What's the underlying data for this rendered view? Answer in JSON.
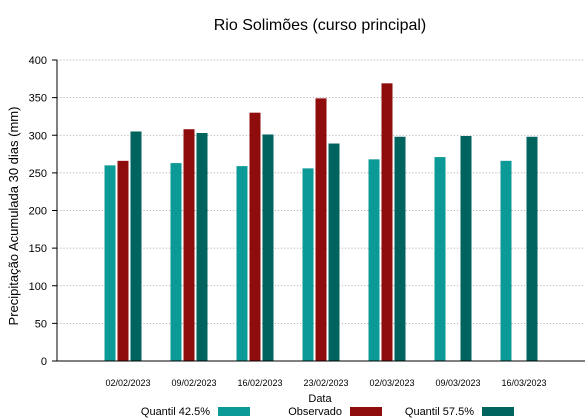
{
  "chart_data": {
    "type": "bar",
    "title": "Rio Solimões (curso principal)",
    "xlabel": "Data",
    "ylabel": "Precipitação Acumulada 30 dias (mm)",
    "ylim": [
      0,
      400
    ],
    "yticks": [
      0,
      50,
      100,
      150,
      200,
      250,
      300,
      350,
      400
    ],
    "grid": "horizontal dotted",
    "legend": "bottom",
    "categories": [
      "02/02/2023",
      "09/02/2023",
      "16/02/2023",
      "23/02/2023",
      "02/03/2023",
      "09/03/2023",
      "16/03/2023"
    ],
    "series": [
      {
        "name": "Quantil 42.5%",
        "color": "#0c9a96",
        "values": [
          260,
          263,
          259,
          256,
          268,
          271,
          266
        ]
      },
      {
        "name": "Observado",
        "color": "#8e0c0c",
        "values": [
          266,
          308,
          330,
          349,
          369,
          null,
          null
        ]
      },
      {
        "name": "Quantil 57.5%",
        "color": "#00635d",
        "values": [
          305,
          303,
          301,
          289,
          298,
          299,
          298
        ]
      }
    ]
  }
}
